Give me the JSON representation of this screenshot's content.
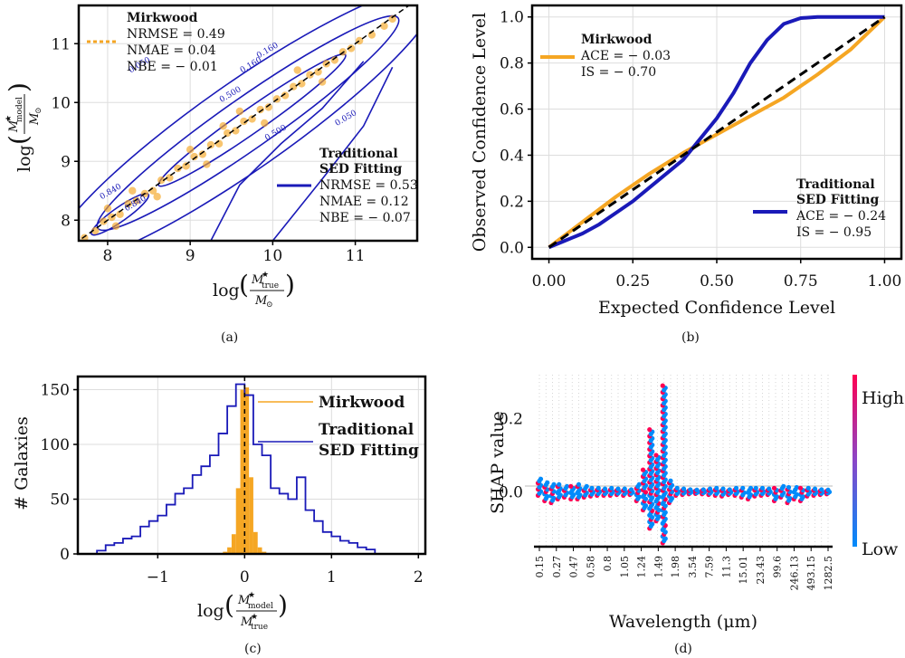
{
  "chart_data": [
    {
      "panel": "(a)",
      "type": "scatter",
      "xlabel": "log(M*true / M⊙)",
      "ylabel": "log(M*model / M⊙)",
      "xlim": [
        7.65,
        11.75
      ],
      "ylim": [
        7.65,
        11.65
      ],
      "xticks": [
        "8",
        "9",
        "10",
        "11"
      ],
      "yticks": [
        "8",
        "9",
        "10",
        "11"
      ],
      "grid": true,
      "series": [
        {
          "name": "Mirkwood",
          "color": "#f5a623",
          "stats": [
            "NRMSE = 0.49",
            "NMAE = 0.04",
            "NBE = − 0.01"
          ]
        },
        {
          "name": "Traditional SED Fitting",
          "color": "#1a1ab8",
          "stats": [
            "NRMSE = 0.53",
            "NMAE = 0.12",
            "NBE = − 0.07"
          ]
        }
      ],
      "contour_levels": [
        "0.050",
        "0.160",
        "0.500",
        "0.840",
        "0.050",
        "0.160",
        "0.500",
        "0.840"
      ],
      "scatter_points": [
        {
          "x": 7.72,
          "y": 7.7
        },
        {
          "x": 7.85,
          "y": 7.82
        },
        {
          "x": 7.95,
          "y": 7.98
        },
        {
          "x": 8.05,
          "y": 8.05
        },
        {
          "x": 8.15,
          "y": 8.1
        },
        {
          "x": 8.25,
          "y": 8.28
        },
        {
          "x": 8.35,
          "y": 8.33
        },
        {
          "x": 8.45,
          "y": 8.45
        },
        {
          "x": 8.55,
          "y": 8.5
        },
        {
          "x": 8.65,
          "y": 8.68
        },
        {
          "x": 8.75,
          "y": 8.72
        },
        {
          "x": 8.85,
          "y": 8.88
        },
        {
          "x": 8.95,
          "y": 8.92
        },
        {
          "x": 9.05,
          "y": 9.08
        },
        {
          "x": 9.15,
          "y": 9.12
        },
        {
          "x": 9.25,
          "y": 9.28
        },
        {
          "x": 9.35,
          "y": 9.3
        },
        {
          "x": 9.45,
          "y": 9.48
        },
        {
          "x": 9.55,
          "y": 9.52
        },
        {
          "x": 9.65,
          "y": 9.68
        },
        {
          "x": 9.75,
          "y": 9.72
        },
        {
          "x": 9.85,
          "y": 9.88
        },
        {
          "x": 9.95,
          "y": 9.92
        },
        {
          "x": 10.05,
          "y": 10.06
        },
        {
          "x": 10.15,
          "y": 10.12
        },
        {
          "x": 10.25,
          "y": 10.27
        },
        {
          "x": 10.35,
          "y": 10.32
        },
        {
          "x": 10.45,
          "y": 10.47
        },
        {
          "x": 10.55,
          "y": 10.52
        },
        {
          "x": 10.65,
          "y": 10.66
        },
        {
          "x": 10.75,
          "y": 10.72
        },
        {
          "x": 10.85,
          "y": 10.86
        },
        {
          "x": 10.95,
          "y": 10.92
        },
        {
          "x": 11.05,
          "y": 11.05
        },
        {
          "x": 11.2,
          "y": 11.15
        },
        {
          "x": 11.35,
          "y": 11.3
        },
        {
          "x": 11.45,
          "y": 11.42
        },
        {
          "x": 8.3,
          "y": 8.5
        },
        {
          "x": 8.6,
          "y": 8.4
        },
        {
          "x": 9.0,
          "y": 9.2
        },
        {
          "x": 9.2,
          "y": 8.95
        },
        {
          "x": 9.6,
          "y": 9.85
        },
        {
          "x": 9.9,
          "y": 9.65
        },
        {
          "x": 10.3,
          "y": 10.55
        },
        {
          "x": 10.6,
          "y": 10.35
        },
        {
          "x": 8.0,
          "y": 8.2
        },
        {
          "x": 8.1,
          "y": 7.9
        },
        {
          "x": 9.4,
          "y": 9.6
        }
      ]
    },
    {
      "panel": "(b)",
      "type": "line",
      "xlabel": "Expected Confidence Level",
      "ylabel": "Observed Confidence Level",
      "xlim": [
        -0.05,
        1.05
      ],
      "ylim": [
        -0.05,
        1.05
      ],
      "xticks": [
        "0.00",
        "0.25",
        "0.50",
        "0.75",
        "1.00"
      ],
      "yticks": [
        "0.0",
        "0.2",
        "0.4",
        "0.6",
        "0.8",
        "1.0"
      ],
      "grid": true,
      "series": [
        {
          "name": "Mirkwood",
          "color": "#f5a623",
          "stats": [
            "ACE = − 0.03",
            "IS = − 0.70"
          ],
          "x": [
            0,
            0.1,
            0.2,
            0.3,
            0.4,
            0.5,
            0.6,
            0.7,
            0.8,
            0.9,
            1.0
          ],
          "y": [
            0,
            0.11,
            0.22,
            0.32,
            0.41,
            0.49,
            0.57,
            0.65,
            0.75,
            0.86,
            1.0
          ]
        },
        {
          "name": "Traditional SED Fitting",
          "color": "#1a1ab8",
          "stats": [
            "ACE = − 0.24",
            "IS = − 0.95"
          ],
          "x": [
            0,
            0.05,
            0.1,
            0.15,
            0.2,
            0.25,
            0.3,
            0.35,
            0.4,
            0.45,
            0.5,
            0.55,
            0.6,
            0.65,
            0.7,
            0.75,
            0.8,
            0.9,
            1.0
          ],
          "y": [
            0,
            0.03,
            0.06,
            0.1,
            0.15,
            0.2,
            0.26,
            0.32,
            0.38,
            0.47,
            0.56,
            0.67,
            0.8,
            0.9,
            0.97,
            0.995,
            1.0,
            1.0,
            1.0
          ]
        },
        {
          "name": "",
          "color": "#000000",
          "x": [
            0,
            1
          ],
          "y": [
            0,
            1
          ]
        }
      ]
    },
    {
      "panel": "(c)",
      "type": "bar",
      "xlabel": "log(M*model / M*true)",
      "ylabel": "# Galaxies",
      "xlim": [
        -1.92,
        2.08
      ],
      "ylim": [
        0,
        162
      ],
      "xticks": [
        "−1",
        "0",
        "1",
        "2"
      ],
      "yticks": [
        "0",
        "50",
        "100",
        "150"
      ],
      "grid": true,
      "series": [
        {
          "name": "Mirkwood",
          "color": "#f5a623",
          "bin_edges": [
            -0.25,
            -0.2,
            -0.15,
            -0.1,
            -0.05,
            0,
            0.05,
            0.1,
            0.15,
            0.2,
            0.25
          ],
          "counts": [
            2,
            6,
            18,
            60,
            150,
            152,
            70,
            20,
            6,
            2
          ]
        },
        {
          "name": "Traditional SED Fitting",
          "color": "#1a1ab8",
          "bin_edges": [
            -1.7,
            -1.6,
            -1.5,
            -1.4,
            -1.3,
            -1.2,
            -1.1,
            -1.0,
            -0.9,
            -0.8,
            -0.7,
            -0.6,
            -0.5,
            -0.4,
            -0.3,
            -0.2,
            -0.1,
            0.0,
            0.1,
            0.2,
            0.3,
            0.4,
            0.5,
            0.6,
            0.7,
            0.8,
            0.9,
            1.0,
            1.1,
            1.2,
            1.3,
            1.4,
            1.5
          ],
          "counts": [
            3,
            8,
            10,
            14,
            16,
            25,
            30,
            35,
            45,
            55,
            60,
            72,
            80,
            90,
            110,
            135,
            155,
            145,
            100,
            90,
            60,
            55,
            50,
            70,
            40,
            30,
            20,
            16,
            12,
            10,
            6,
            4
          ]
        }
      ]
    },
    {
      "panel": "(d)",
      "type": "scatter",
      "xlabel": "Wavelength (μm)",
      "ylabel": "SHAP value",
      "ylim": [
        -0.15,
        0.32
      ],
      "yticks": [
        "0.0",
        "0.2"
      ],
      "colorbar": {
        "high": "High",
        "low": "Low",
        "high_color": "#ff0052",
        "low_color": "#008bfb"
      },
      "wavelength_ticks": [
        "0.15",
        "0.27",
        "0.47",
        "0.58",
        "0.8",
        "1.05",
        "1.24",
        "1.49",
        "1.98",
        "3.54",
        "7.59",
        "11.3",
        "15.01",
        "23.43",
        "99.6",
        "246.13",
        "493.15",
        "1282.5"
      ],
      "features": [
        {
          "lo": -0.01,
          "hi": 0.035
        },
        {
          "lo": -0.025,
          "hi": 0.025
        },
        {
          "lo": -0.03,
          "hi": 0.02
        },
        {
          "lo": -0.02,
          "hi": 0.02
        },
        {
          "lo": -0.015,
          "hi": 0.015
        },
        {
          "lo": -0.02,
          "hi": 0.015
        },
        {
          "lo": -0.02,
          "hi": 0.02
        },
        {
          "lo": -0.015,
          "hi": 0.015
        },
        {
          "lo": -0.012,
          "hi": 0.01
        },
        {
          "lo": -0.01,
          "hi": 0.01
        },
        {
          "lo": -0.01,
          "hi": 0.008
        },
        {
          "lo": -0.01,
          "hi": 0.01
        },
        {
          "lo": -0.008,
          "hi": 0.008
        },
        {
          "lo": -0.01,
          "hi": 0.008
        },
        {
          "lo": -0.008,
          "hi": 0.006
        },
        {
          "lo": -0.025,
          "hi": 0.02
        },
        {
          "lo": -0.05,
          "hi": 0.06
        },
        {
          "lo": -0.1,
          "hi": 0.17
        },
        {
          "lo": -0.08,
          "hi": 0.1
        },
        {
          "lo": -0.14,
          "hi": 0.29
        },
        {
          "lo": -0.03,
          "hi": 0.03
        },
        {
          "lo": -0.01,
          "hi": 0.01
        },
        {
          "lo": -0.008,
          "hi": 0.008
        },
        {
          "lo": -0.006,
          "hi": 0.006
        },
        {
          "lo": -0.005,
          "hi": 0.005
        },
        {
          "lo": -0.006,
          "hi": 0.006
        },
        {
          "lo": -0.008,
          "hi": 0.008
        },
        {
          "lo": -0.01,
          "hi": 0.01
        },
        {
          "lo": -0.012,
          "hi": 0.008
        },
        {
          "lo": -0.008,
          "hi": 0.006
        },
        {
          "lo": -0.01,
          "hi": 0.01
        },
        {
          "lo": -0.015,
          "hi": 0.01
        },
        {
          "lo": -0.02,
          "hi": 0.01
        },
        {
          "lo": -0.012,
          "hi": 0.01
        },
        {
          "lo": -0.01,
          "hi": 0.01
        },
        {
          "lo": -0.008,
          "hi": 0.008
        },
        {
          "lo": -0.025,
          "hi": 0.01
        },
        {
          "lo": -0.015,
          "hi": 0.015
        },
        {
          "lo": -0.03,
          "hi": 0.012
        },
        {
          "lo": -0.02,
          "hi": 0.012
        },
        {
          "lo": -0.025,
          "hi": 0.01
        },
        {
          "lo": -0.012,
          "hi": 0.01
        },
        {
          "lo": -0.01,
          "hi": 0.008
        },
        {
          "lo": -0.008,
          "hi": 0.006
        },
        {
          "lo": -0.006,
          "hi": 0.005
        }
      ]
    }
  ]
}
